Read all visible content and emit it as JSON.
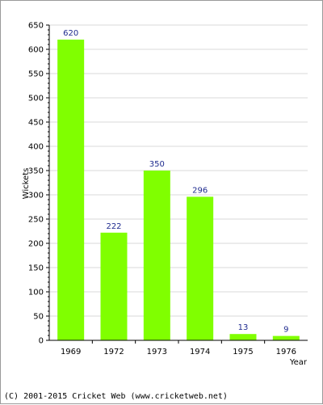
{
  "chart_data": {
    "type": "bar",
    "categories": [
      "1969",
      "1972",
      "1973",
      "1974",
      "1975",
      "1976"
    ],
    "values": [
      620,
      222,
      350,
      296,
      13,
      9
    ],
    "data_labels": [
      "620",
      "222",
      "350",
      "296",
      "13",
      "9"
    ],
    "xlabel": "Year",
    "ylabel": "Wickets",
    "ylim": [
      0,
      650
    ],
    "yticks": [
      0,
      50,
      100,
      150,
      200,
      250,
      300,
      350,
      400,
      450,
      500,
      550,
      600,
      650
    ],
    "grid": true,
    "bar_color": "#80ff00",
    "data_label_color": "#1f2b8f"
  },
  "footer": "(C) 2001-2015 Cricket Web (www.cricketweb.net)"
}
